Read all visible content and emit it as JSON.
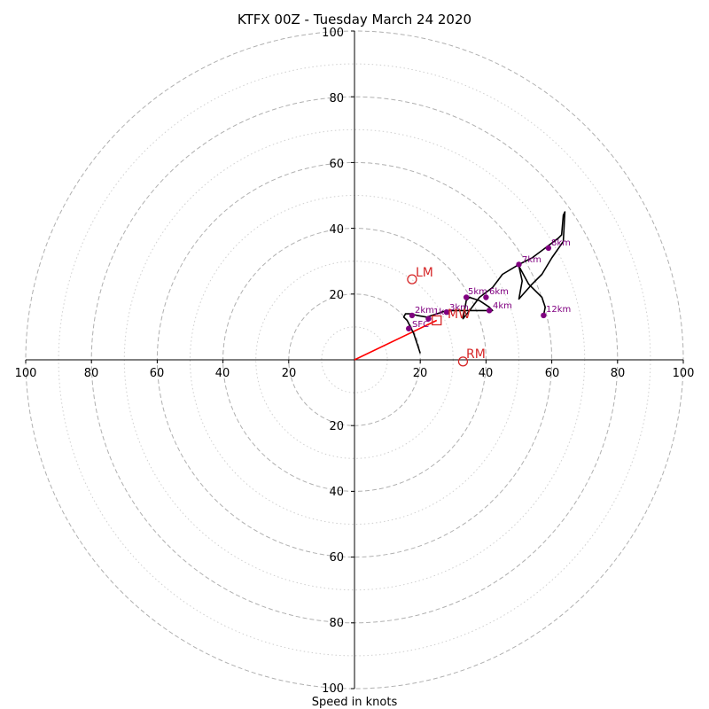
{
  "chart_data": {
    "type": "hodograph",
    "title": "KTFX 00Z - Tuesday March 24 2020",
    "xlabel": "Speed in knots",
    "range": [
      -100,
      100
    ],
    "grid": true,
    "ring_major": [
      20,
      40,
      60,
      80,
      100
    ],
    "ring_minor": [
      10,
      30,
      50,
      70,
      90
    ],
    "ticks": {
      "x_left": [
        "100",
        "80",
        "60",
        "40",
        "20"
      ],
      "x_right": [
        "20",
        "40",
        "60",
        "80",
        "100"
      ],
      "y_up": [
        "20",
        "40",
        "60",
        "80",
        "100"
      ],
      "y_down": [
        "20",
        "40",
        "60",
        "80",
        "100"
      ]
    },
    "ticks_values": {
      "x_left": [
        -100,
        -80,
        -60,
        -40,
        -20
      ],
      "x_right": [
        20,
        40,
        60,
        80,
        100
      ],
      "y_up": [
        20,
        40,
        60,
        80,
        100
      ],
      "y_down": [
        -20,
        -40,
        -60,
        -80,
        -100
      ]
    },
    "hodograph_trace": [
      [
        20,
        2
      ],
      [
        19,
        5
      ],
      [
        18,
        8
      ],
      [
        17,
        10
      ],
      [
        16,
        12
      ],
      [
        15,
        13
      ],
      [
        15.5,
        14
      ],
      [
        17,
        14
      ],
      [
        19,
        13.5
      ],
      [
        22,
        13
      ],
      [
        25,
        14
      ],
      [
        28,
        15
      ],
      [
        31,
        15
      ],
      [
        34,
        15
      ],
      [
        38,
        15
      ],
      [
        42,
        15
      ],
      [
        41,
        16
      ],
      [
        38,
        18
      ],
      [
        35,
        19
      ],
      [
        34,
        18
      ],
      [
        33,
        12.5
      ],
      [
        35,
        15
      ],
      [
        38,
        19
      ],
      [
        42,
        22
      ],
      [
        45,
        26
      ],
      [
        50,
        29
      ],
      [
        54,
        31
      ],
      [
        58,
        34
      ],
      [
        62,
        37
      ],
      [
        63,
        38
      ],
      [
        63.5,
        44
      ],
      [
        64,
        45
      ],
      [
        63.5,
        36
      ],
      [
        60,
        31
      ],
      [
        57,
        26
      ],
      [
        54,
        23
      ],
      [
        50,
        18.5
      ],
      [
        51,
        24
      ],
      [
        50,
        28.5
      ],
      [
        53,
        23
      ],
      [
        56,
        20
      ],
      [
        57,
        19
      ],
      [
        58,
        16
      ],
      [
        57.5,
        13.5
      ]
    ],
    "height_points": [
      {
        "label": "SFC",
        "u": 16.5,
        "v": 9.5
      },
      {
        "label": "1km",
        "u": 28,
        "v": 14.5
      },
      {
        "label": "2km",
        "u": 17.5,
        "v": 13.5
      },
      {
        "label": "3km",
        "u": 22.5,
        "v": 12.5
      },
      {
        "label": "4km",
        "u": 41,
        "v": 15
      },
      {
        "label": "5km",
        "u": 34,
        "v": 19
      },
      {
        "label": "6km",
        "u": 40,
        "v": 19
      },
      {
        "label": "7km",
        "u": 50,
        "v": 29
      },
      {
        "label": "8km",
        "u": 59,
        "v": 34
      },
      {
        "label": "12km",
        "u": 57.5,
        "v": 13.5
      }
    ],
    "storm_motion": {
      "LM": {
        "label": "LM",
        "u": 17.5,
        "v": 24.5
      },
      "RM": {
        "label": "RM",
        "u": 33,
        "v": -0.5
      },
      "MW": {
        "label": "MW",
        "u": 25,
        "v": 12
      }
    },
    "shear_vector": {
      "from": [
        0,
        0
      ],
      "to": [
        25,
        12
      ]
    },
    "colors": {
      "trace": "#000000",
      "height_points": "#800080",
      "markers": "#d62728",
      "shear_vector": "#ff0000",
      "grid": "#b0b0b0"
    }
  }
}
